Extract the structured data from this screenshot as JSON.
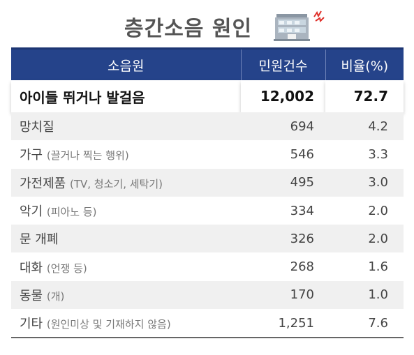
{
  "title": "층간소음 원인",
  "chart_data": {
    "type": "table",
    "columns": [
      "소음원",
      "민원건수",
      "비율(%)"
    ],
    "rows": [
      {
        "source": "아이들 뛰거나 발걸음",
        "note": "",
        "count": "12,002",
        "percent": "72.7"
      },
      {
        "source": "망치질",
        "note": "",
        "count": "694",
        "percent": "4.2"
      },
      {
        "source": "가구",
        "note": "(끌거나 찍는 행위)",
        "count": "546",
        "percent": "3.3"
      },
      {
        "source": "가전제품",
        "note": "(TV, 청소기, 세탁기)",
        "count": "495",
        "percent": "3.0"
      },
      {
        "source": "악기",
        "note": "(피아노 등)",
        "count": "334",
        "percent": "2.0"
      },
      {
        "source": "문 개폐",
        "note": "",
        "count": "326",
        "percent": "2.0"
      },
      {
        "source": "대화",
        "note": "(언쟁 등)",
        "count": "268",
        "percent": "1.6"
      },
      {
        "source": "동물",
        "note": "(개)",
        "count": "170",
        "percent": "1.0"
      },
      {
        "source": "기타",
        "note": "(원인미상 및 기재하지 않음)",
        "count": "1,251",
        "percent": "7.6"
      }
    ]
  },
  "colors": {
    "header_bg": "#25438a",
    "header_text": "#ffffff",
    "alt_row": "#f0f0f0",
    "accent_red": "#e0302a"
  },
  "icons": {
    "title_icon": "building-icon"
  }
}
